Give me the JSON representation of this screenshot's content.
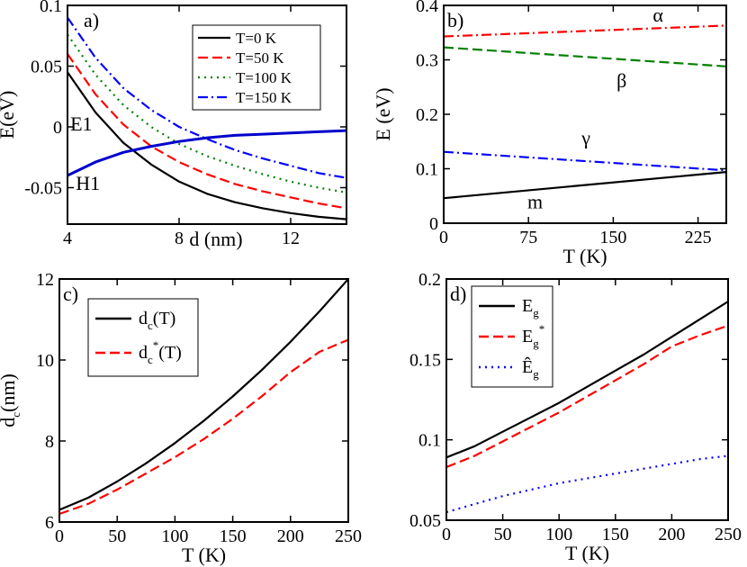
{
  "chart_data": [
    {
      "panel": "a)",
      "type": "line",
      "xlabel": "d (nm)",
      "ylabel": "E(eV)",
      "xlim": [
        4,
        14
      ],
      "ylim": [
        -0.08,
        0.1
      ],
      "xticks": [
        4,
        8,
        12
      ],
      "yticks": [
        -0.05,
        0,
        0.05,
        0.1
      ],
      "legend_position": "top-right",
      "series": [
        {
          "name": "T=0 K",
          "color": "#000000",
          "dash": "solid",
          "x": [
            4,
            5,
            6,
            7,
            8,
            9,
            10,
            11,
            12,
            13,
            14
          ],
          "y": [
            0.045,
            0.012,
            -0.013,
            -0.031,
            -0.045,
            -0.055,
            -0.062,
            -0.067,
            -0.071,
            -0.074,
            -0.076
          ]
        },
        {
          "name": "T=50 K",
          "color": "#ff0000",
          "dash": "dash",
          "x": [
            4,
            5,
            6,
            7,
            8,
            9,
            10,
            11,
            12,
            13,
            14
          ],
          "y": [
            0.06,
            0.027,
            0.002,
            -0.016,
            -0.029,
            -0.039,
            -0.047,
            -0.053,
            -0.058,
            -0.063,
            -0.067
          ]
        },
        {
          "name": "T=100 K",
          "color": "#008000",
          "dash": "dot",
          "x": [
            4,
            5,
            6,
            7,
            8,
            9,
            10,
            11,
            12,
            13,
            14
          ],
          "y": [
            0.076,
            0.043,
            0.018,
            0.0,
            -0.014,
            -0.024,
            -0.032,
            -0.039,
            -0.045,
            -0.05,
            -0.054
          ]
        },
        {
          "name": "T=150 K",
          "color": "#0000ff",
          "dash": "dashdot",
          "x": [
            4,
            5,
            6,
            7,
            8,
            9,
            10,
            11,
            12,
            13,
            14
          ],
          "y": [
            0.09,
            0.057,
            0.032,
            0.014,
            0.0,
            -0.01,
            -0.019,
            -0.026,
            -0.032,
            -0.038,
            -0.042
          ]
        },
        {
          "name": "H1",
          "color": "#0000cc",
          "dash": "solid",
          "width": 3,
          "legend": false,
          "x": [
            4,
            5,
            6,
            7,
            8,
            9,
            10,
            11,
            12,
            13,
            14
          ],
          "y": [
            -0.04,
            -0.029,
            -0.021,
            -0.016,
            -0.012,
            -0.009,
            -0.007,
            -0.006,
            -0.005,
            -0.004,
            -0.003
          ]
        }
      ],
      "annotations": [
        {
          "text": "E1",
          "x": 4.1,
          "y": -0.003
        },
        {
          "text": "H1",
          "x": 4.3,
          "y": -0.052
        }
      ]
    },
    {
      "panel": "b)",
      "type": "line",
      "xlabel": "T (K)",
      "ylabel": "E (eV)",
      "xlim": [
        0,
        250
      ],
      "ylim": [
        0,
        0.4
      ],
      "xticks": [
        0,
        75,
        150,
        225
      ],
      "yticks": [
        0,
        0.1,
        0.2,
        0.3,
        0.4
      ],
      "series": [
        {
          "name": "α",
          "color": "#ff0000",
          "dash": "dashdot",
          "x": [
            0,
            250
          ],
          "y": [
            0.343,
            0.363
          ]
        },
        {
          "name": "β",
          "color": "#008000",
          "dash": "dash",
          "x": [
            0,
            250
          ],
          "y": [
            0.323,
            0.288
          ]
        },
        {
          "name": "γ",
          "color": "#0000ff",
          "dash": "dashdot",
          "x": [
            0,
            250
          ],
          "y": [
            0.131,
            0.097
          ]
        },
        {
          "name": "m",
          "color": "#000000",
          "dash": "solid",
          "x": [
            0,
            250
          ],
          "y": [
            0.046,
            0.094
          ]
        }
      ],
      "annotations": [
        {
          "text": "α",
          "x": 185,
          "y": 0.37
        },
        {
          "text": "β",
          "x": 153,
          "y": 0.25
        },
        {
          "text": "γ",
          "x": 122,
          "y": 0.145
        },
        {
          "text": "m",
          "x": 74,
          "y": 0.027
        }
      ]
    },
    {
      "panel": "c)",
      "type": "line",
      "xlabel": "T (K)",
      "ylabel": "d",
      "ylabel_sub": "c",
      "ylabel_suffix": "(nm)",
      "xlim": [
        0,
        250
      ],
      "ylim": [
        6,
        12
      ],
      "xticks": [
        0,
        50,
        100,
        150,
        200,
        250
      ],
      "yticks": [
        6,
        8,
        10,
        12
      ],
      "legend_position": "top-left",
      "series": [
        {
          "name": "dc(T)",
          "label_main": "d",
          "label_sub": "c",
          "label_sup": "",
          "label_tail": "(T)",
          "color": "#000000",
          "dash": "solid",
          "x": [
            0,
            25,
            50,
            75,
            100,
            125,
            150,
            175,
            200,
            225,
            250
          ],
          "y": [
            6.3,
            6.6,
            7.0,
            7.45,
            7.95,
            8.5,
            9.1,
            9.75,
            10.45,
            11.2,
            12.0
          ]
        },
        {
          "name": "dc*(T)",
          "label_main": "d",
          "label_sub": "c",
          "label_sup": "*",
          "label_tail": "(T)",
          "color": "#ff0000",
          "dash": "dash",
          "x": [
            0,
            25,
            50,
            75,
            100,
            125,
            150,
            175,
            200,
            225,
            250
          ],
          "y": [
            6.2,
            6.45,
            6.8,
            7.2,
            7.6,
            8.05,
            8.55,
            9.1,
            9.7,
            10.2,
            10.5
          ]
        }
      ]
    },
    {
      "panel": "d)",
      "type": "line",
      "xlabel": "T (K)",
      "ylabel": "",
      "xlim": [
        0,
        250
      ],
      "ylim": [
        0.05,
        0.2
      ],
      "xticks": [
        0,
        50,
        100,
        150,
        200,
        250
      ],
      "yticks": [
        0.05,
        0.1,
        0.15,
        0.2
      ],
      "legend_position": "top-left",
      "series": [
        {
          "name": "Eg",
          "label_main": "E",
          "label_sub": "g",
          "label_sup": "",
          "color": "#000000",
          "dash": "solid",
          "x": [
            0,
            25,
            50,
            75,
            100,
            125,
            150,
            175,
            200,
            225,
            250
          ],
          "y": [
            0.089,
            0.096,
            0.105,
            0.114,
            0.123,
            0.133,
            0.143,
            0.153,
            0.164,
            0.175,
            0.186
          ]
        },
        {
          "name": "Eg*",
          "label_main": "E",
          "label_sub": "g",
          "label_sup": "*",
          "color": "#ff0000",
          "dash": "dash",
          "x": [
            0,
            25,
            50,
            75,
            100,
            125,
            150,
            175,
            200,
            225,
            250
          ],
          "y": [
            0.083,
            0.09,
            0.099,
            0.108,
            0.117,
            0.127,
            0.137,
            0.147,
            0.158,
            0.165,
            0.171
          ]
        },
        {
          "name": "Êg",
          "label_main": "Ê",
          "label_sub": "g",
          "label_sup": "",
          "color": "#0000ff",
          "dash": "dot",
          "x": [
            0,
            25,
            50,
            75,
            100,
            125,
            150,
            175,
            200,
            225,
            250
          ],
          "y": [
            0.055,
            0.06,
            0.065,
            0.069,
            0.073,
            0.076,
            0.079,
            0.082,
            0.085,
            0.088,
            0.09
          ]
        }
      ]
    }
  ]
}
